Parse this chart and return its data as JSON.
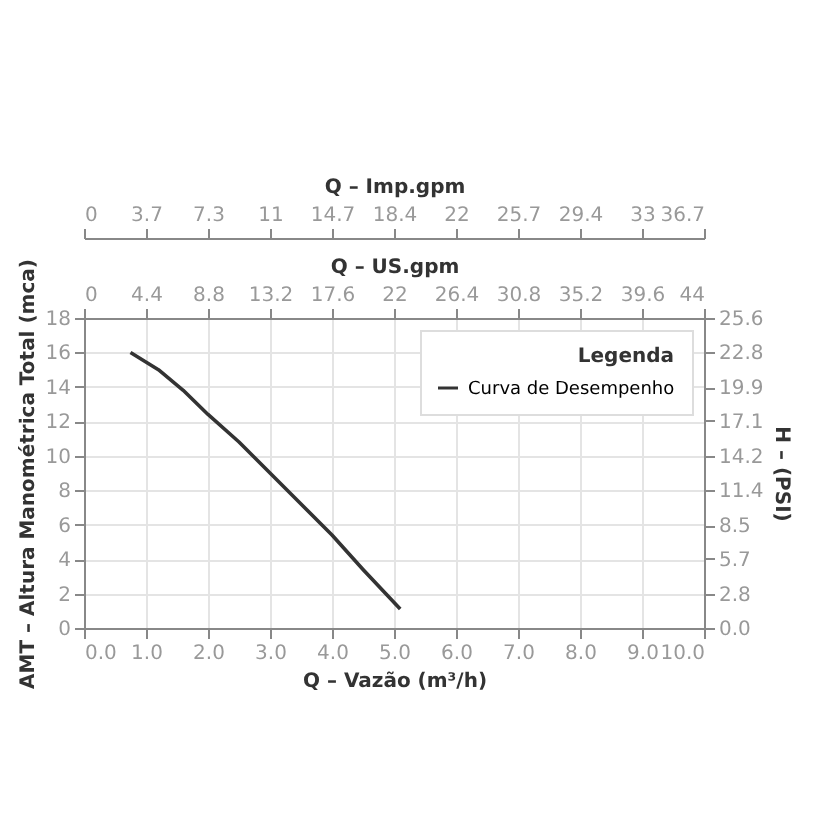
{
  "chart_data": {
    "type": "line",
    "xlabel": "Q – Vazão (m³/h)",
    "ylabel": "AMT – Altura Manométrica Total (mca)",
    "y2label": "H – (PSI)",
    "x2label": "Q – US.gpm",
    "legend_title": "Legenda",
    "annotations": [
      "Q – Imp.gpm",
      "0",
      "3.7",
      "7.3",
      "11",
      "14.7",
      "18.4",
      "22",
      "25.7",
      "29.4",
      "33",
      "36.7"
    ],
    "xlim": [
      0,
      10
    ],
    "xticks": [
      {
        "value": 0,
        "label": "0.0"
      },
      {
        "value": 1,
        "label": "1.0"
      },
      {
        "value": 2,
        "label": "2.0"
      },
      {
        "value": 3,
        "label": "3.0"
      },
      {
        "value": 4,
        "label": "4.0"
      },
      {
        "value": 5,
        "label": "5.0"
      },
      {
        "value": 6,
        "label": "6.0"
      },
      {
        "value": 7,
        "label": "7.0"
      },
      {
        "value": 8,
        "label": "8.0"
      },
      {
        "value": 9,
        "label": "9.0"
      },
      {
        "value": 10,
        "label": "10.0"
      }
    ],
    "ylim": [
      0,
      18
    ],
    "yticks": [
      0,
      2,
      4,
      6,
      8,
      10,
      12,
      14,
      16,
      18
    ],
    "y2lim": [
      0,
      25.6
    ],
    "y2ticks": [
      {
        "value": 0,
        "label": "0.0"
      },
      2.8,
      5.7,
      8.5,
      11.4,
      14.2,
      17.1,
      19.9,
      22.8,
      25.6
    ],
    "x2lim": [
      0,
      44
    ],
    "x2ticks": [
      0,
      4.4,
      8.8,
      13.2,
      17.6,
      22,
      26.4,
      30.8,
      35.2,
      39.6,
      44
    ],
    "grid": true,
    "legend": "top right",
    "marker": "none",
    "line_style": "solid",
    "series": [
      {
        "name": "Curva de Desempenho",
        "color": "#333333",
        "x": [
          0.75,
          1.2,
          1.6,
          2.0,
          2.5,
          3.0,
          3.5,
          4.0,
          4.5,
          5.1
        ],
        "values": [
          16.0,
          15.0,
          13.8,
          12.4,
          10.8,
          9.0,
          7.2,
          5.4,
          3.4,
          1.1
        ]
      }
    ]
  }
}
